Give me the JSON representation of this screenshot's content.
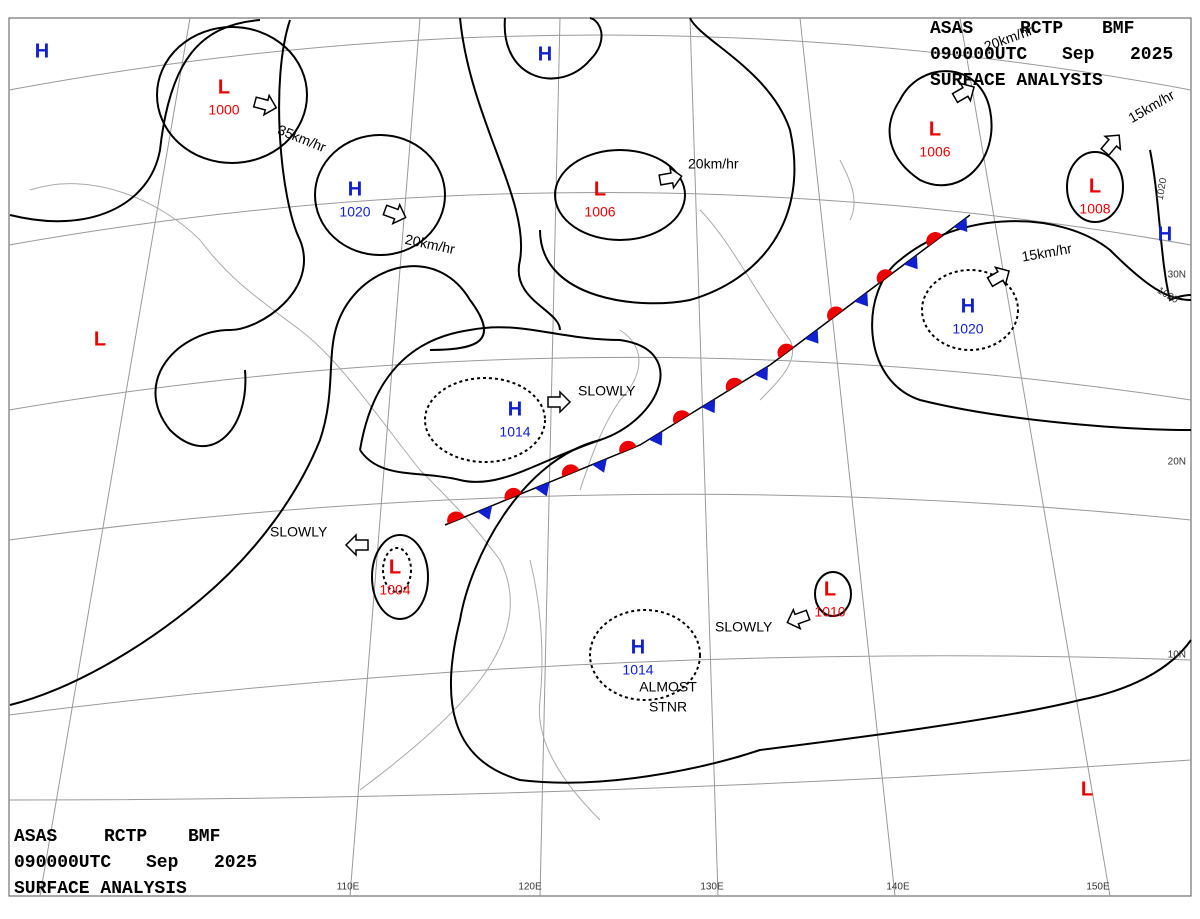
{
  "header": {
    "line1": [
      "ASAS",
      "RCTP",
      "BMF"
    ],
    "line2": [
      "090000UTC",
      "Sep",
      "2025"
    ],
    "line3": "SURFACE ANALYSIS"
  },
  "systems": [
    {
      "letter": "H"
    },
    {
      "letter": "L",
      "pressure": "1000"
    },
    {
      "letter": "H",
      "pressure": "1020"
    },
    {
      "letter": "H"
    },
    {
      "letter": "L",
      "pressure": "1006"
    },
    {
      "letter": "L",
      "pressure": "1006"
    },
    {
      "letter": "L",
      "pressure": "1008"
    },
    {
      "letter": "H"
    },
    {
      "letter": "H",
      "pressure": "1020"
    },
    {
      "letter": "L"
    },
    {
      "letter": "H",
      "pressure": "1014"
    },
    {
      "letter": "L",
      "pressure": "1004"
    },
    {
      "letter": "L",
      "pressure": "1010"
    },
    {
      "letter": "H",
      "pressure": "1014"
    },
    {
      "letter": "L"
    }
  ],
  "motions": [
    "35km/hr",
    "20km/hr",
    "20km/hr",
    "20km/hr",
    "15km/hr",
    "15km/hr",
    "SLOWLY",
    "SLOWLY",
    "SLOWLY",
    "ALMOST",
    "STNR"
  ],
  "isobar_labels": [
    "1020",
    "1020"
  ],
  "longitudes": [
    "110E",
    "120E",
    "130E",
    "140E",
    "150E"
  ],
  "latitudes": [
    "30N",
    "20N",
    "10N"
  ]
}
